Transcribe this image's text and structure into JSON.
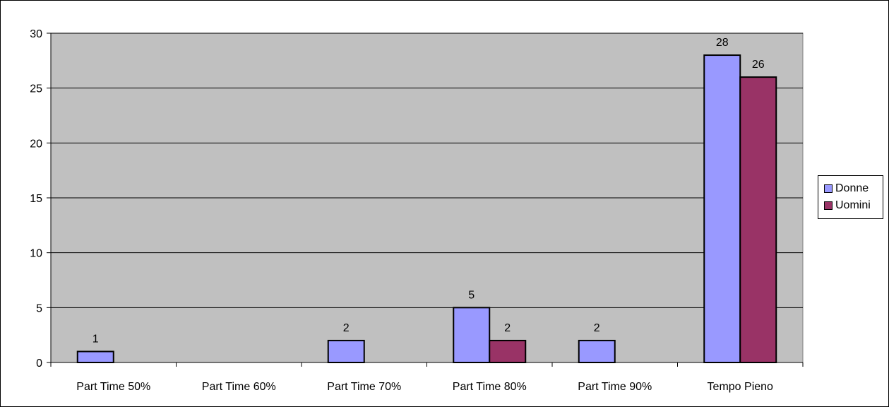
{
  "chart_data": {
    "type": "bar",
    "categories": [
      "Part Time 50%",
      "Part Time 60%",
      "Part Time 70%",
      "Part Time 80%",
      "Part Time 90%",
      "Tempo Pieno"
    ],
    "series": [
      {
        "name": "Donne",
        "color": "#9999ff",
        "values": [
          1,
          0,
          2,
          5,
          2,
          28
        ]
      },
      {
        "name": "Uomini",
        "color": "#993366",
        "values": [
          0,
          0,
          0,
          2,
          0,
          26
        ]
      }
    ],
    "data_labels": [
      [
        "1",
        "",
        "2",
        "5",
        "2",
        "28"
      ],
      [
        "",
        "",
        "",
        "2",
        "",
        "26"
      ]
    ],
    "ylim": [
      0,
      30
    ],
    "yticks": [
      0,
      5,
      10,
      15,
      20,
      25,
      30
    ],
    "grid": true,
    "plot_background": "#c0c0c0",
    "legend_position": "right",
    "title": "",
    "xlabel": "",
    "ylabel": ""
  }
}
